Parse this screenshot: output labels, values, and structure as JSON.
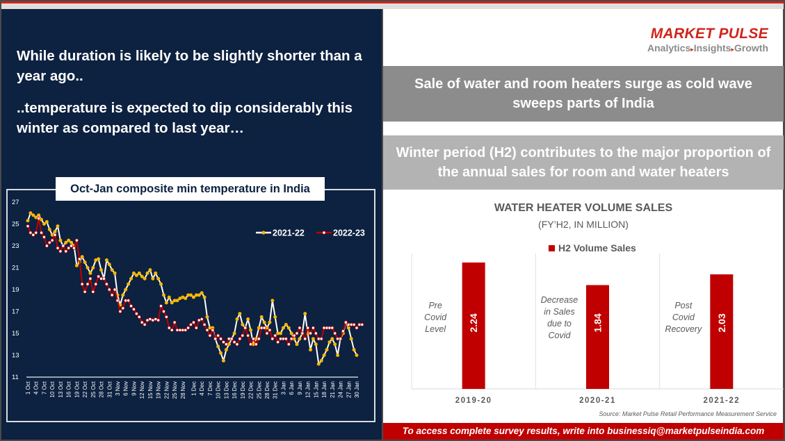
{
  "left": {
    "headline1": "While duration is likely to be slightly shorter than a year ago..",
    "headline2": "..temperature is expected to dip considerably this winter as compared to last year…"
  },
  "logo": {
    "title": "MARKET PULSE",
    "tagline_parts": [
      "Analytics",
      "Insights",
      "Growth"
    ],
    "arrow_glyph": "▸"
  },
  "banners": {
    "banner1": "Sale of water and room heaters surge as cold wave sweeps parts of India",
    "banner2": "Winter period (H2) contributes to the major proportion of the annual sales for room and water heaters"
  },
  "source": "Source: Market Pulse Retail Performance Measurement Service",
  "footer": "To access complete survey results, write into businessiq@marketpulseindia.com",
  "colors": {
    "navy": "#0d2140",
    "brand_red": "#d0241b",
    "bar_red": "#c00000",
    "series_2021_line": "#ffffff",
    "series_2021_marker": "#f5b800",
    "series_2022_line": "#c00000",
    "series_2022_marker": "#ffffff"
  },
  "chart_data": [
    {
      "type": "line",
      "title": "Oct-Jan composite min temperature in India",
      "xlabel": "",
      "ylabel": "",
      "ylim": [
        11,
        27
      ],
      "yticks": [
        11,
        13,
        15,
        17,
        19,
        21,
        23,
        25,
        27
      ],
      "xtick_labels": [
        "1 Oct",
        "4 Oct",
        "7 Oct",
        "10 Oct",
        "13 Oct",
        "16 Oct",
        "19 Oct",
        "22 Oct",
        "25 Oct",
        "28 Oct",
        "31 Oct",
        "3 Nov",
        "6 Nov",
        "9 Nov",
        "12 Nov",
        "15 Nov",
        "19 Nov",
        "22 Nov",
        "25 Nov",
        "28 Nov",
        "1 Dec",
        "4 Dec",
        "7 Dec",
        "10 Dec",
        "13 Dec",
        "16 Dec",
        "19 Dec",
        "22 Dec",
        "25 Dec",
        "28 Dec",
        "31 Dec",
        "3 Jan",
        "6 Jan",
        "9 Jan",
        "12 Jan",
        "15 Jan",
        "18 Jan",
        "21 Jan",
        "24 Jan",
        "27 Jan",
        "30 Jan"
      ],
      "legend_position": "top-right",
      "grid": false,
      "series": [
        {
          "name": "2021-22",
          "values": [
            25.3,
            26.0,
            25.8,
            25.6,
            25.8,
            25.4,
            25.0,
            25.2,
            24.5,
            24.0,
            24.3,
            24.8,
            23.5,
            23.0,
            23.3,
            23.5,
            23.3,
            23.0,
            21.2,
            21.5,
            22.0,
            21.5,
            21.0,
            20.5,
            21.0,
            21.7,
            21.8,
            20.8,
            20.0,
            21.7,
            21.3,
            20.8,
            20.5,
            18.5,
            17.6,
            18.5,
            19.0,
            19.5,
            20.0,
            20.5,
            20.3,
            20.5,
            20.2,
            20.0,
            20.5,
            20.8,
            20.0,
            20.5,
            20.0,
            19.5,
            18.5,
            17.8,
            18.3,
            17.8,
            18.0,
            18.0,
            18.2,
            18.3,
            18.2,
            18.5,
            18.5,
            18.3,
            18.5,
            18.5,
            18.7,
            18.3,
            16.5,
            15.5,
            15.5,
            14.5,
            13.8,
            13.2,
            12.5,
            13.5,
            14.0,
            14.5,
            15.0,
            16.3,
            16.8,
            15.8,
            15.5,
            16.3,
            15.3,
            14.0,
            14.5,
            15.5,
            16.5,
            16.0,
            15.5,
            16.0,
            18.0,
            16.5,
            15.0,
            15.0,
            15.5,
            15.8,
            15.5,
            15.0,
            14.5,
            14.0,
            14.5,
            15.0,
            16.8,
            15.0,
            13.5,
            14.5,
            14.0,
            12.2,
            12.5,
            13.0,
            13.5,
            14.2,
            14.5,
            14.0,
            13.0,
            14.5,
            15.0,
            16.0,
            15.5,
            14.5,
            13.5,
            13.0
          ],
          "note": "2021-22 series values approximated from chart"
        },
        {
          "name": "2022-23",
          "values": [
            24.8,
            24.2,
            24.0,
            24.2,
            25.5,
            24.2,
            23.8,
            23.0,
            23.3,
            23.5,
            24.0,
            22.8,
            22.5,
            23.0,
            22.5,
            22.8,
            23.0,
            22.8,
            23.5,
            21.8,
            19.5,
            18.8,
            19.5,
            20.0,
            18.8,
            19.5,
            20.2,
            20.0,
            20.0,
            19.5,
            19.0,
            18.5,
            19.0,
            18.0,
            17.0,
            17.3,
            18.0,
            18.0,
            17.5,
            17.2,
            16.8,
            16.5,
            16.0,
            15.8,
            16.2,
            16.3,
            16.2,
            16.3,
            16.2,
            17.5,
            17.0,
            16.5,
            15.5,
            15.3,
            16.0,
            15.3,
            15.3,
            15.3,
            15.3,
            15.5,
            15.8,
            16.0,
            15.5,
            16.2,
            16.3,
            15.8,
            15.3,
            14.8,
            15.3,
            14.5,
            14.8,
            14.5,
            14.2,
            14.0,
            14.5,
            14.5,
            14.2,
            14.0,
            14.5,
            14.8,
            15.5,
            14.8,
            14.0,
            14.5,
            14.0,
            14.5,
            15.5,
            15.5,
            15.0,
            15.3,
            14.5,
            14.8,
            14.2,
            14.5,
            14.5,
            14.5,
            14.0,
            14.5,
            14.8,
            15.0,
            15.5,
            15.0,
            14.5,
            15.5,
            15.0,
            15.5,
            15.0,
            14.5,
            14.5,
            15.5,
            15.5,
            15.5,
            15.5,
            15.0,
            14.5,
            14.5,
            15.2,
            16.0,
            15.8,
            15.8,
            15.8,
            15.5,
            15.8,
            15.8
          ],
          "note": "2022-23 series values approximated from chart"
        }
      ]
    },
    {
      "type": "bar",
      "title": "WATER HEATER VOLUME SALES",
      "subtitle": "(FY’H2, IN MILLION)",
      "legend": [
        "H2 Volume Sales"
      ],
      "legend_position": "top",
      "categories": [
        "2019-20",
        "2020-21",
        "2021-22"
      ],
      "values": [
        2.24,
        1.84,
        2.03
      ],
      "value_labels": [
        "2.24",
        "1.84",
        "2.03"
      ],
      "annotations": [
        "Pre Covid Level",
        "Decrease in Sales due to Covid",
        "Post Covid Recovery"
      ],
      "ylim": [
        0,
        2.4
      ]
    }
  ]
}
